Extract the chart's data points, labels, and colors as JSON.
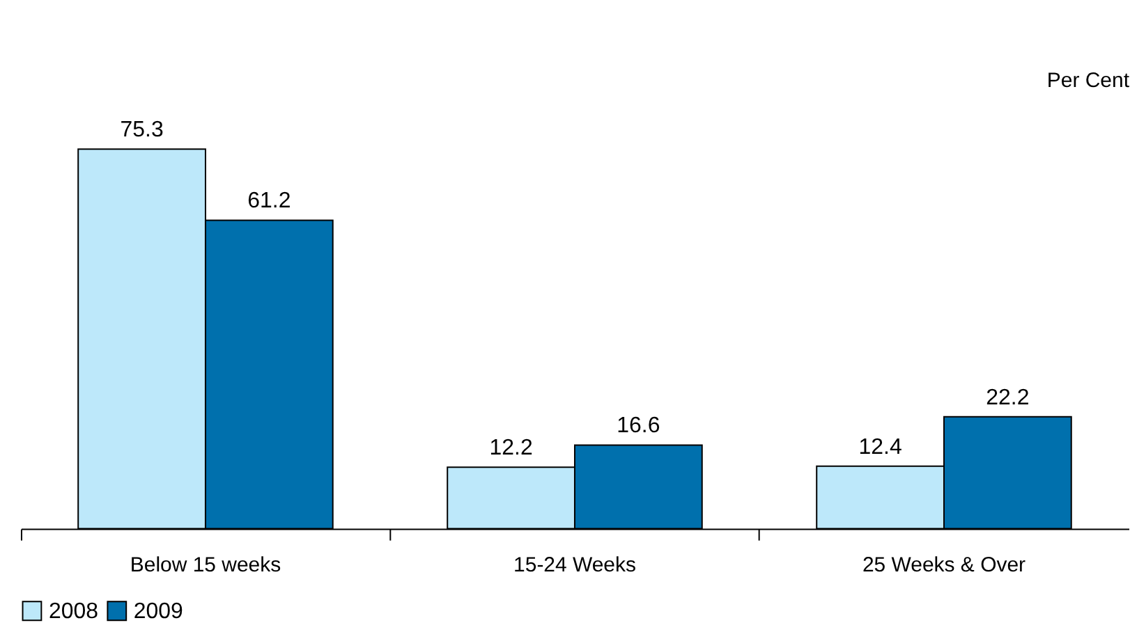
{
  "chart_data": {
    "type": "bar",
    "ylabel": "Per Cent",
    "categories": [
      "Below 15 weeks",
      "15-24 Weeks",
      "25 Weeks & Over"
    ],
    "series": [
      {
        "name": "2008",
        "color": "#bde8fa",
        "values": [
          75.3,
          12.2,
          12.4
        ]
      },
      {
        "name": "2009",
        "color": "#0070ad",
        "values": [
          61.2,
          16.6,
          22.2
        ]
      }
    ],
    "data_labels": true,
    "legend": "bottom",
    "grid": false
  }
}
